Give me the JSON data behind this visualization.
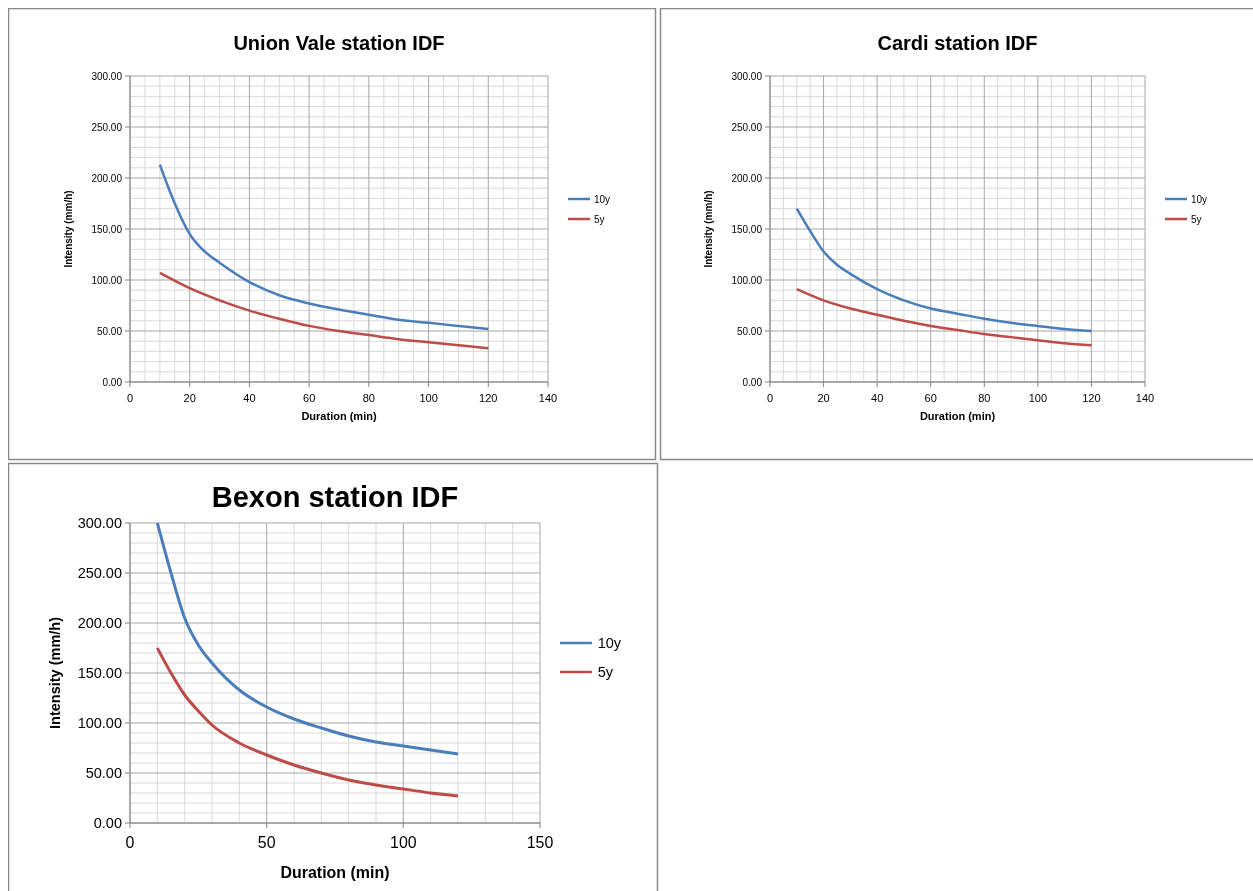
{
  "chart_data": [
    {
      "type": "line",
      "title": "Union Vale station IDF",
      "xlabel": "Duration (min)",
      "ylabel": "Intensity (mm/h)",
      "x": [
        10,
        15,
        20,
        25,
        30,
        40,
        50,
        60,
        70,
        80,
        90,
        100,
        110,
        120
      ],
      "xlim": [
        0,
        140
      ],
      "xticks": [
        0,
        20,
        40,
        60,
        80,
        100,
        120,
        140
      ],
      "ylim": [
        0,
        300
      ],
      "yticks": [
        {
          "value": 0,
          "label": "0.00"
        },
        {
          "value": 50,
          "label": "50.00"
        },
        {
          "value": 100,
          "label": "100.00"
        },
        {
          "value": 150,
          "label": "150.00"
        },
        {
          "value": 200,
          "label": "200.00"
        },
        {
          "value": 250,
          "label": "250.00"
        },
        {
          "value": 300,
          "label": "300.00"
        }
      ],
      "grid": true,
      "legend": "right",
      "series": [
        {
          "name": "10y",
          "color": "#4a7ebb",
          "values": [
            213,
            175,
            145,
            128,
            117,
            98,
            85,
            77,
            71,
            66,
            61,
            58,
            55,
            52
          ]
        },
        {
          "name": "5y",
          "color": "#be4b48",
          "x": [
            10,
            20,
            30,
            40,
            50,
            60,
            70,
            80,
            90,
            100,
            110,
            120
          ],
          "values": [
            107,
            92,
            80,
            70,
            62,
            55,
            50,
            46,
            42,
            39,
            36,
            33
          ]
        }
      ]
    },
    {
      "type": "line",
      "title": "Cardi station IDF",
      "xlabel": "Duration (min)",
      "ylabel": "Intensity (mm/h)",
      "x": [
        10,
        15,
        20,
        25,
        30,
        40,
        50,
        60,
        70,
        80,
        90,
        100,
        110,
        120
      ],
      "xlim": [
        0,
        140
      ],
      "xticks": [
        0,
        20,
        40,
        60,
        80,
        100,
        120,
        140
      ],
      "ylim": [
        0,
        300
      ],
      "yticks": [
        {
          "value": 0,
          "label": "0.00"
        },
        {
          "value": 50,
          "label": "50.00"
        },
        {
          "value": 100,
          "label": "100.00"
        },
        {
          "value": 150,
          "label": "150.00"
        },
        {
          "value": 200,
          "label": "200.00"
        },
        {
          "value": 250,
          "label": "250.00"
        },
        {
          "value": 300,
          "label": "300.00"
        }
      ],
      "grid": true,
      "legend": "right",
      "series": [
        {
          "name": "10y",
          "color": "#4a7ebb",
          "values": [
            170,
            148,
            128,
            115,
            106,
            91,
            80,
            72,
            67,
            62,
            58,
            55,
            52,
            50
          ]
        },
        {
          "name": "5y",
          "color": "#be4b48",
          "x": [
            10,
            20,
            30,
            40,
            50,
            60,
            70,
            80,
            90,
            100,
            110,
            120
          ],
          "values": [
            91,
            80,
            72,
            66,
            60,
            55,
            51,
            47,
            44,
            41,
            38,
            36
          ]
        }
      ]
    },
    {
      "type": "line",
      "title": "Bexon station IDF",
      "xlabel": "Duration (min)",
      "ylabel": "Intensity (mm/h)",
      "x": [
        10,
        15,
        20,
        25,
        30,
        40,
        50,
        60,
        70,
        80,
        90,
        100,
        110,
        120
      ],
      "xlim": [
        0,
        150
      ],
      "xticks": [
        0,
        50,
        100,
        150
      ],
      "ylim": [
        0,
        300
      ],
      "yticks": [
        {
          "value": 0,
          "label": "0.00"
        },
        {
          "value": 50,
          "label": "50.00"
        },
        {
          "value": 100,
          "label": "100.00"
        },
        {
          "value": 150,
          "label": "150.00"
        },
        {
          "value": 200,
          "label": "200.00"
        },
        {
          "value": 250,
          "label": "250.00"
        },
        {
          "value": 300,
          "label": "300.00"
        }
      ],
      "grid": true,
      "legend": "right",
      "series": [
        {
          "name": "10y",
          "color": "#4a7ebb",
          "values": [
            300,
            250,
            205,
            178,
            160,
            133,
            116,
            104,
            95,
            87,
            81,
            77,
            73,
            69
          ]
        },
        {
          "name": "5y",
          "color": "#be4b48",
          "values": [
            175,
            150,
            128,
            112,
            98,
            80,
            68,
            58,
            50,
            43,
            38,
            34,
            30,
            27
          ]
        }
      ]
    }
  ]
}
